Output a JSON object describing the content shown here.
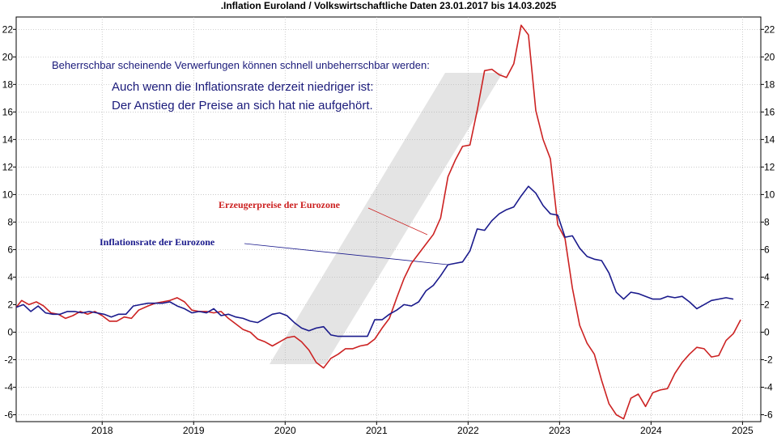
{
  "chart_data": {
    "type": "line",
    "title": ".Inflation Euroland / Volkswirtschaftliche Daten 23.01.2017 bis 14.03.2025",
    "xlabel": "",
    "ylabel": "",
    "xlim": [
      2017.06,
      2025.2
    ],
    "ylim": [
      -6.5,
      22.9
    ],
    "y_ticks": [
      -6,
      -4,
      -2,
      0,
      2,
      4,
      6,
      8,
      10,
      12,
      14,
      16,
      18,
      20,
      22
    ],
    "x_ticks": [
      2018,
      2019,
      2020,
      2021,
      2022,
      2023,
      2024,
      2025
    ],
    "grid": true,
    "axes_both_sides": true,
    "colors": {
      "ppi": "#cc2222",
      "cpi": "#1a1a8c",
      "grid": "#b8b8b8",
      "watermark": "#e4e4e4"
    },
    "annotations": {
      "note": "Beherrschbar scheinende Verwerfungen können schnell unbeherrschbar werden:",
      "line1": "Auch wenn die Inflationsrate derzeit niedriger ist:",
      "line2": "Der Anstieg der Preise an sich hat nie aufgehört."
    },
    "series": [
      {
        "name": "Erzeugerpreise der Eurozone",
        "color": "#cc2222",
        "points": [
          [
            2017.06,
            1.8
          ],
          [
            2017.12,
            2.3
          ],
          [
            2017.2,
            2.0
          ],
          [
            2017.28,
            2.2
          ],
          [
            2017.36,
            1.9
          ],
          [
            2017.44,
            1.4
          ],
          [
            2017.52,
            1.3
          ],
          [
            2017.6,
            1.0
          ],
          [
            2017.68,
            1.2
          ],
          [
            2017.76,
            1.5
          ],
          [
            2017.84,
            1.3
          ],
          [
            2017.92,
            1.5
          ],
          [
            2018.0,
            1.2
          ],
          [
            2018.08,
            0.8
          ],
          [
            2018.16,
            0.8
          ],
          [
            2018.24,
            1.1
          ],
          [
            2018.32,
            1.0
          ],
          [
            2018.4,
            1.6
          ],
          [
            2018.5,
            1.9
          ],
          [
            2018.58,
            2.1
          ],
          [
            2018.66,
            2.2
          ],
          [
            2018.74,
            2.3
          ],
          [
            2018.82,
            2.5
          ],
          [
            2018.9,
            2.2
          ],
          [
            2018.98,
            1.6
          ],
          [
            2019.06,
            1.5
          ],
          [
            2019.14,
            1.5
          ],
          [
            2019.22,
            1.4
          ],
          [
            2019.3,
            1.5
          ],
          [
            2019.38,
            1.0
          ],
          [
            2019.46,
            0.6
          ],
          [
            2019.54,
            0.2
          ],
          [
            2019.62,
            0.0
          ],
          [
            2019.7,
            -0.5
          ],
          [
            2019.78,
            -0.7
          ],
          [
            2019.86,
            -1.0
          ],
          [
            2019.94,
            -0.7
          ],
          [
            2020.02,
            -0.4
          ],
          [
            2020.1,
            -0.3
          ],
          [
            2020.18,
            -0.7
          ],
          [
            2020.26,
            -1.3
          ],
          [
            2020.34,
            -2.2
          ],
          [
            2020.42,
            -2.6
          ],
          [
            2020.5,
            -1.9
          ],
          [
            2020.58,
            -1.6
          ],
          [
            2020.66,
            -1.2
          ],
          [
            2020.74,
            -1.2
          ],
          [
            2020.82,
            -1.0
          ],
          [
            2020.9,
            -0.9
          ],
          [
            2020.98,
            -0.5
          ],
          [
            2021.06,
            0.3
          ],
          [
            2021.14,
            1.0
          ],
          [
            2021.22,
            2.5
          ],
          [
            2021.3,
            3.9
          ],
          [
            2021.38,
            5.0
          ],
          [
            2021.46,
            5.7
          ],
          [
            2021.54,
            6.4
          ],
          [
            2021.62,
            7.1
          ],
          [
            2021.7,
            8.3
          ],
          [
            2021.78,
            11.3
          ],
          [
            2021.86,
            12.5
          ],
          [
            2021.94,
            13.5
          ],
          [
            2022.02,
            13.6
          ],
          [
            2022.1,
            16.1
          ],
          [
            2022.18,
            19.0
          ],
          [
            2022.26,
            19.1
          ],
          [
            2022.34,
            18.7
          ],
          [
            2022.42,
            18.5
          ],
          [
            2022.5,
            19.5
          ],
          [
            2022.58,
            22.3
          ],
          [
            2022.66,
            21.6
          ],
          [
            2022.74,
            16.1
          ],
          [
            2022.82,
            14.0
          ],
          [
            2022.9,
            12.6
          ],
          [
            2022.98,
            7.8
          ],
          [
            2023.06,
            6.8
          ],
          [
            2023.14,
            3.2
          ],
          [
            2023.22,
            0.5
          ],
          [
            2023.3,
            -0.8
          ],
          [
            2023.38,
            -1.6
          ],
          [
            2023.46,
            -3.5
          ],
          [
            2023.54,
            -5.2
          ],
          [
            2023.62,
            -6.0
          ],
          [
            2023.7,
            -6.3
          ],
          [
            2023.78,
            -4.8
          ],
          [
            2023.86,
            -4.5
          ],
          [
            2023.94,
            -5.4
          ],
          [
            2024.02,
            -4.4
          ],
          [
            2024.1,
            -4.2
          ],
          [
            2024.18,
            -4.1
          ],
          [
            2024.26,
            -3.0
          ],
          [
            2024.34,
            -2.2
          ],
          [
            2024.42,
            -1.6
          ],
          [
            2024.5,
            -1.1
          ],
          [
            2024.58,
            -1.2
          ],
          [
            2024.66,
            -1.8
          ],
          [
            2024.74,
            -1.7
          ],
          [
            2024.82,
            -0.6
          ],
          [
            2024.9,
            -0.1
          ],
          [
            2024.98,
            0.9
          ]
        ]
      },
      {
        "name": "Inflationsrate der Eurozone",
        "color": "#1a1a8c",
        "points": [
          [
            2017.06,
            1.8
          ],
          [
            2017.14,
            2.0
          ],
          [
            2017.22,
            1.5
          ],
          [
            2017.3,
            1.9
          ],
          [
            2017.38,
            1.4
          ],
          [
            2017.46,
            1.3
          ],
          [
            2017.54,
            1.3
          ],
          [
            2017.62,
            1.5
          ],
          [
            2017.7,
            1.5
          ],
          [
            2017.78,
            1.4
          ],
          [
            2017.86,
            1.5
          ],
          [
            2017.94,
            1.4
          ],
          [
            2018.02,
            1.3
          ],
          [
            2018.1,
            1.1
          ],
          [
            2018.18,
            1.3
          ],
          [
            2018.26,
            1.3
          ],
          [
            2018.34,
            1.9
          ],
          [
            2018.42,
            2.0
          ],
          [
            2018.5,
            2.1
          ],
          [
            2018.58,
            2.1
          ],
          [
            2018.66,
            2.1
          ],
          [
            2018.74,
            2.2
          ],
          [
            2018.82,
            1.9
          ],
          [
            2018.9,
            1.7
          ],
          [
            2018.98,
            1.4
          ],
          [
            2019.06,
            1.5
          ],
          [
            2019.14,
            1.4
          ],
          [
            2019.22,
            1.7
          ],
          [
            2019.3,
            1.2
          ],
          [
            2019.38,
            1.3
          ],
          [
            2019.46,
            1.1
          ],
          [
            2019.54,
            1.0
          ],
          [
            2019.62,
            0.8
          ],
          [
            2019.7,
            0.7
          ],
          [
            2019.78,
            1.0
          ],
          [
            2019.86,
            1.3
          ],
          [
            2019.94,
            1.4
          ],
          [
            2020.02,
            1.2
          ],
          [
            2020.1,
            0.7
          ],
          [
            2020.18,
            0.3
          ],
          [
            2020.26,
            0.1
          ],
          [
            2020.34,
            0.3
          ],
          [
            2020.42,
            0.4
          ],
          [
            2020.5,
            -0.2
          ],
          [
            2020.58,
            -0.3
          ],
          [
            2020.66,
            -0.3
          ],
          [
            2020.74,
            -0.3
          ],
          [
            2020.82,
            -0.3
          ],
          [
            2020.9,
            -0.3
          ],
          [
            2020.98,
            0.9
          ],
          [
            2021.06,
            0.9
          ],
          [
            2021.14,
            1.3
          ],
          [
            2021.22,
            1.6
          ],
          [
            2021.3,
            2.0
          ],
          [
            2021.38,
            1.9
          ],
          [
            2021.46,
            2.2
          ],
          [
            2021.54,
            3.0
          ],
          [
            2021.62,
            3.4
          ],
          [
            2021.7,
            4.1
          ],
          [
            2021.78,
            4.9
          ],
          [
            2021.86,
            5.0
          ],
          [
            2021.94,
            5.1
          ],
          [
            2022.02,
            5.9
          ],
          [
            2022.1,
            7.5
          ],
          [
            2022.18,
            7.4
          ],
          [
            2022.26,
            8.1
          ],
          [
            2022.34,
            8.6
          ],
          [
            2022.42,
            8.9
          ],
          [
            2022.5,
            9.1
          ],
          [
            2022.58,
            9.9
          ],
          [
            2022.66,
            10.6
          ],
          [
            2022.74,
            10.1
          ],
          [
            2022.82,
            9.2
          ],
          [
            2022.9,
            8.6
          ],
          [
            2022.98,
            8.5
          ],
          [
            2023.06,
            6.9
          ],
          [
            2023.14,
            7.0
          ],
          [
            2023.22,
            6.1
          ],
          [
            2023.3,
            5.5
          ],
          [
            2023.38,
            5.3
          ],
          [
            2023.46,
            5.2
          ],
          [
            2023.54,
            4.3
          ],
          [
            2023.62,
            2.9
          ],
          [
            2023.7,
            2.4
          ],
          [
            2023.78,
            2.9
          ],
          [
            2023.86,
            2.8
          ],
          [
            2023.94,
            2.6
          ],
          [
            2024.02,
            2.4
          ],
          [
            2024.1,
            2.4
          ],
          [
            2024.18,
            2.6
          ],
          [
            2024.26,
            2.5
          ],
          [
            2024.34,
            2.6
          ],
          [
            2024.42,
            2.2
          ],
          [
            2024.5,
            1.7
          ],
          [
            2024.58,
            2.0
          ],
          [
            2024.66,
            2.3
          ],
          [
            2024.74,
            2.4
          ],
          [
            2024.82,
            2.5
          ],
          [
            2024.9,
            2.4
          ]
        ]
      }
    ]
  }
}
